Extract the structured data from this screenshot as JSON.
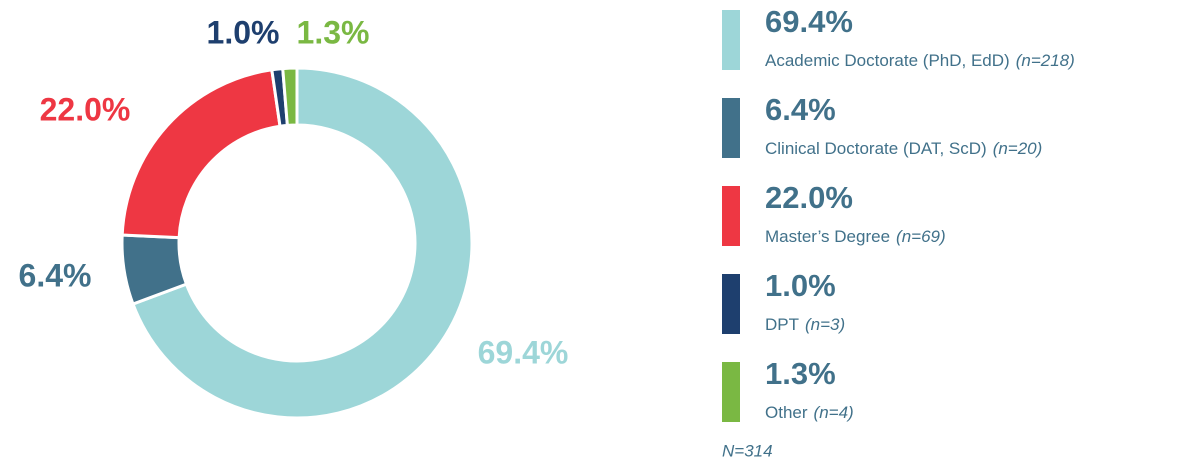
{
  "chart_data": {
    "type": "donut",
    "categories": [
      "Academic Doctorate (PhD, EdD)",
      "Clinical Doctorate (DAT, ScD)",
      "Master’s Degree",
      "DPT",
      "Other"
    ],
    "values": [
      69.4,
      6.4,
      22.0,
      1.0,
      1.3
    ],
    "value_labels": [
      "69.4%",
      "6.4%",
      "22.0%",
      "1.0%",
      "1.3%"
    ],
    "count_labels": [
      "(n=218)",
      "(n=20)",
      "(n=69)",
      "(n=3)",
      "(n=4)"
    ],
    "colors": [
      "#9dd6d8",
      "#41718a",
      "#ee3743",
      "#1e3f6e",
      "#7ab843"
    ],
    "note": "N=314"
  }
}
